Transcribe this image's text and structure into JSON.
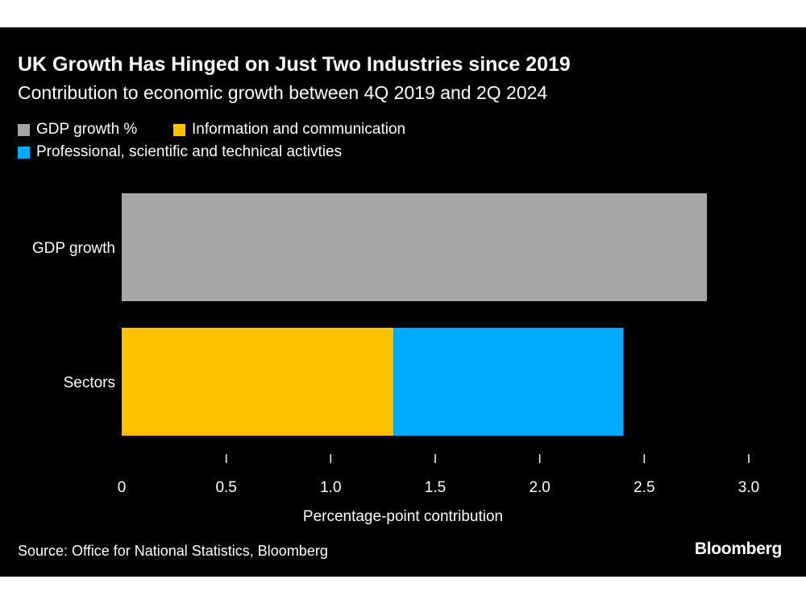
{
  "chart_data": {
    "type": "bar",
    "orientation": "horizontal",
    "stacked": true,
    "title": "UK Growth Has Hinged on Just Two Industries since 2019",
    "subtitle": "Contribution to economic growth between 4Q 2019 and 2Q 2024",
    "categories": [
      "GDP growth",
      "Sectors"
    ],
    "series": [
      {
        "name": "GDP growth %",
        "color": "#a6a6a6",
        "values": [
          2.8,
          0
        ]
      },
      {
        "name": "Information and communication",
        "color": "#fcc200",
        "values": [
          0,
          1.3
        ]
      },
      {
        "name": "Professional, scientific and technical activties",
        "color": "#00aaff",
        "values": [
          0,
          1.1
        ]
      }
    ],
    "xlabel": "Percentage-point contribution",
    "xlim": [
      0,
      3.0
    ],
    "x_ticks": [
      0,
      0.5,
      1.0,
      1.5,
      2.0,
      2.5,
      3.0
    ],
    "x_tick_labels": [
      "0",
      "0.5",
      "1.0",
      "1.5",
      "2.0",
      "2.5",
      "3.0"
    ],
    "grid": false,
    "legend_position": "top-left"
  },
  "footer": {
    "source": "Source: Office for National Statistics, Bloomberg",
    "brand": "Bloomberg"
  }
}
